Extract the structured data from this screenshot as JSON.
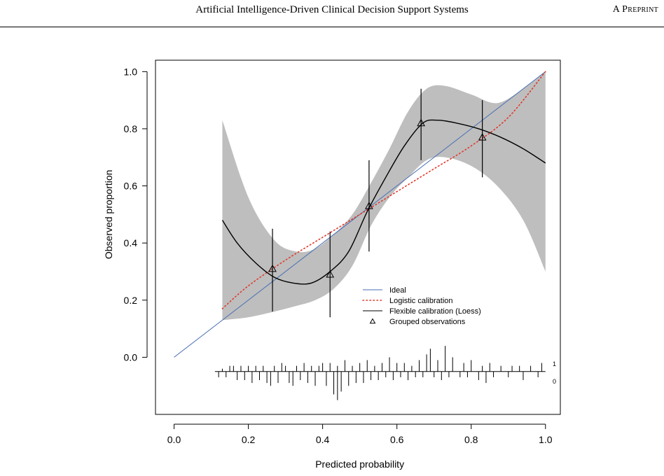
{
  "header": {
    "title": "Artificial Intelligence-Driven Clinical Decision Support Systems",
    "tag": "A Preprint"
  },
  "colors": {
    "ideal": "#4a6fb5",
    "logistic": "#e0392b",
    "loess": "#000000",
    "band": "#bebebe"
  },
  "chart_data": {
    "type": "line",
    "xlabel": "Predicted probability",
    "ylabel": "Observed proportion",
    "xlim": [
      -0.05,
      1.04
    ],
    "ylim": [
      -0.2,
      1.04
    ],
    "x_ticks": [
      "0.0",
      "0.2",
      "0.4",
      "0.6",
      "0.8",
      "1.0"
    ],
    "y_ticks": [
      "0.0",
      "0.2",
      "0.4",
      "0.6",
      "0.8",
      "1.0"
    ],
    "legend_position": "center-right",
    "legend": [
      {
        "name": "Ideal",
        "style": "solid-line",
        "color": "#4a6fb5"
      },
      {
        "name": "Logistic calibration",
        "style": "dotted-line",
        "color": "#e0392b"
      },
      {
        "name": "Flexible calibration (Loess)",
        "style": "solid-line",
        "color": "#000000"
      },
      {
        "name": "Grouped observations",
        "style": "triangle",
        "color": "#000000"
      }
    ],
    "ideal": {
      "x": [
        0,
        1
      ],
      "y": [
        0,
        1
      ]
    },
    "logistic": {
      "x": [
        0.13,
        0.2,
        0.3,
        0.4,
        0.5,
        0.6,
        0.7,
        0.8,
        0.9,
        1.0
      ],
      "y": [
        0.17,
        0.25,
        0.34,
        0.42,
        0.5,
        0.58,
        0.66,
        0.74,
        0.84,
        1.0
      ]
    },
    "loess": {
      "x": [
        0.13,
        0.17,
        0.22,
        0.27,
        0.32,
        0.37,
        0.42,
        0.47,
        0.52,
        0.57,
        0.62,
        0.67,
        0.71,
        0.76,
        0.82,
        0.88,
        0.94,
        1.0
      ],
      "y": [
        0.48,
        0.4,
        0.33,
        0.28,
        0.26,
        0.26,
        0.3,
        0.37,
        0.51,
        0.63,
        0.74,
        0.82,
        0.83,
        0.82,
        0.8,
        0.77,
        0.73,
        0.68
      ]
    },
    "band_upper": {
      "x": [
        0.13,
        0.2,
        0.27,
        0.33,
        0.38,
        0.43,
        0.48,
        0.53,
        0.58,
        0.63,
        0.68,
        0.73,
        0.8,
        0.87,
        0.94,
        1.0
      ],
      "y": [
        0.83,
        0.56,
        0.41,
        0.37,
        0.38,
        0.43,
        0.5,
        0.61,
        0.73,
        0.86,
        0.94,
        0.95,
        0.92,
        0.89,
        0.94,
        1.0
      ]
    },
    "band_lower": {
      "x": [
        0.13,
        0.2,
        0.27,
        0.33,
        0.38,
        0.43,
        0.48,
        0.53,
        0.58,
        0.63,
        0.68,
        0.73,
        0.8,
        0.87,
        0.94,
        1.0
      ],
      "y": [
        0.13,
        0.14,
        0.16,
        0.18,
        0.2,
        0.24,
        0.32,
        0.46,
        0.56,
        0.63,
        0.69,
        0.7,
        0.67,
        0.6,
        0.48,
        0.3
      ]
    },
    "grouped": [
      {
        "x": 0.265,
        "y": 0.31,
        "lo": 0.16,
        "hi": 0.45
      },
      {
        "x": 0.42,
        "y": 0.29,
        "lo": 0.14,
        "hi": 0.44
      },
      {
        "x": 0.525,
        "y": 0.53,
        "lo": 0.37,
        "hi": 0.69
      },
      {
        "x": 0.665,
        "y": 0.82,
        "lo": 0.69,
        "hi": 0.94
      },
      {
        "x": 0.83,
        "y": 0.77,
        "lo": 0.63,
        "hi": 0.9
      }
    ],
    "rug": {
      "labels": [
        "1",
        "0"
      ],
      "baseline": -0.05,
      "events_x": [
        0.13,
        0.15,
        0.16,
        0.18,
        0.2,
        0.22,
        0.24,
        0.27,
        0.29,
        0.3,
        0.33,
        0.35,
        0.37,
        0.39,
        0.4,
        0.42,
        0.44,
        0.46,
        0.48,
        0.5,
        0.52,
        0.54,
        0.56,
        0.58,
        0.6,
        0.62,
        0.64,
        0.66,
        0.68,
        0.69,
        0.71,
        0.73,
        0.75,
        0.78,
        0.8,
        0.83,
        0.85,
        0.88,
        0.91,
        0.93,
        0.96,
        0.99
      ],
      "events_h": [
        0.01,
        0.02,
        0.02,
        0.02,
        0.02,
        0.02,
        0.02,
        0.02,
        0.03,
        0.02,
        0.02,
        0.03,
        0.02,
        0.02,
        0.03,
        0.03,
        0.02,
        0.04,
        0.02,
        0.03,
        0.04,
        0.02,
        0.03,
        0.05,
        0.03,
        0.03,
        0.02,
        0.04,
        0.06,
        0.08,
        0.04,
        0.09,
        0.05,
        0.03,
        0.04,
        0.02,
        0.03,
        0.02,
        0.02,
        0.02,
        0.02,
        0.03
      ],
      "nonevents_x": [
        0.12,
        0.14,
        0.17,
        0.19,
        0.21,
        0.23,
        0.25,
        0.26,
        0.28,
        0.31,
        0.32,
        0.34,
        0.36,
        0.38,
        0.41,
        0.43,
        0.44,
        0.45,
        0.47,
        0.49,
        0.51,
        0.53,
        0.55,
        0.57,
        0.59,
        0.61,
        0.63,
        0.65,
        0.67,
        0.7,
        0.72,
        0.74,
        0.77,
        0.79,
        0.82,
        0.84,
        0.86,
        0.9,
        0.94,
        0.98
      ],
      "nonevents_h": [
        0.02,
        0.02,
        0.03,
        0.03,
        0.04,
        0.03,
        0.04,
        0.05,
        0.04,
        0.04,
        0.05,
        0.03,
        0.04,
        0.05,
        0.05,
        0.08,
        0.1,
        0.07,
        0.05,
        0.04,
        0.04,
        0.03,
        0.03,
        0.02,
        0.03,
        0.02,
        0.03,
        0.02,
        0.02,
        0.02,
        0.03,
        0.02,
        0.02,
        0.02,
        0.03,
        0.04,
        0.02,
        0.02,
        0.03,
        0.02
      ]
    }
  }
}
